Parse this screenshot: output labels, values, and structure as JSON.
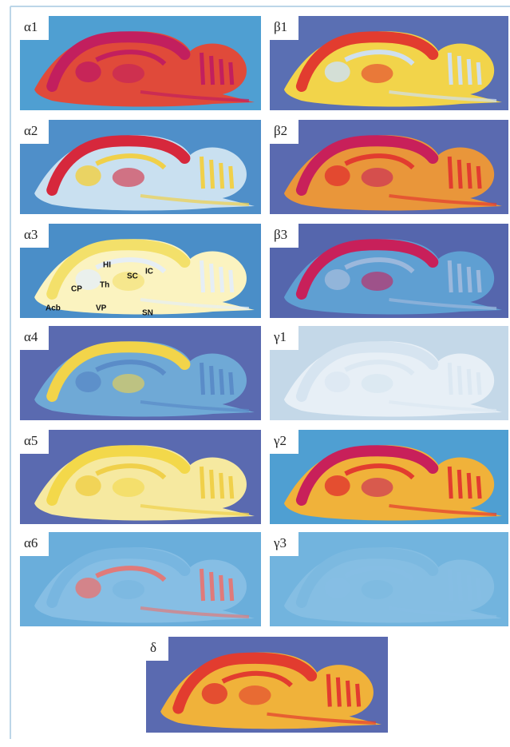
{
  "panels": [
    {
      "label": "α1"
    },
    {
      "label": "β1"
    },
    {
      "label": "α2"
    },
    {
      "label": "β2"
    },
    {
      "label": "α3",
      "annotations": [
        "HI",
        "SC",
        "IC",
        "CP",
        "Th",
        "Acb",
        "VP",
        "SN"
      ]
    },
    {
      "label": "β3"
    },
    {
      "label": "α4"
    },
    {
      "label": "γ1"
    },
    {
      "label": "α5"
    },
    {
      "label": "γ2"
    },
    {
      "label": "α6"
    },
    {
      "label": "γ3"
    },
    {
      "label": "δ"
    }
  ]
}
